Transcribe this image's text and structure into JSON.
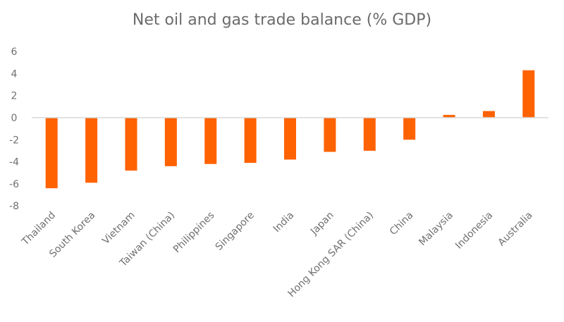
{
  "chart_data": {
    "type": "bar",
    "title": "Net oil and gas trade balance (% GDP)",
    "xlabel": "",
    "ylabel": "",
    "ylim": [
      -8,
      6
    ],
    "yticks": [
      6,
      4,
      2,
      0,
      -2,
      -4,
      -6,
      -8
    ],
    "grid": false,
    "bar_color": "#ff6200",
    "categories": [
      "Thailand",
      "South Korea",
      "Vietnam",
      "Taiwan (China)",
      "Philippines",
      "Singapore",
      "India",
      "Japan",
      "Hong Kong SAR (China)",
      "China",
      "Malaysia",
      "Indonesia",
      "Australia"
    ],
    "values": [
      -6.4,
      -5.9,
      -4.8,
      -4.4,
      -4.2,
      -4.1,
      -3.8,
      -3.1,
      -3.0,
      -2.0,
      0.25,
      0.6,
      4.3
    ]
  }
}
